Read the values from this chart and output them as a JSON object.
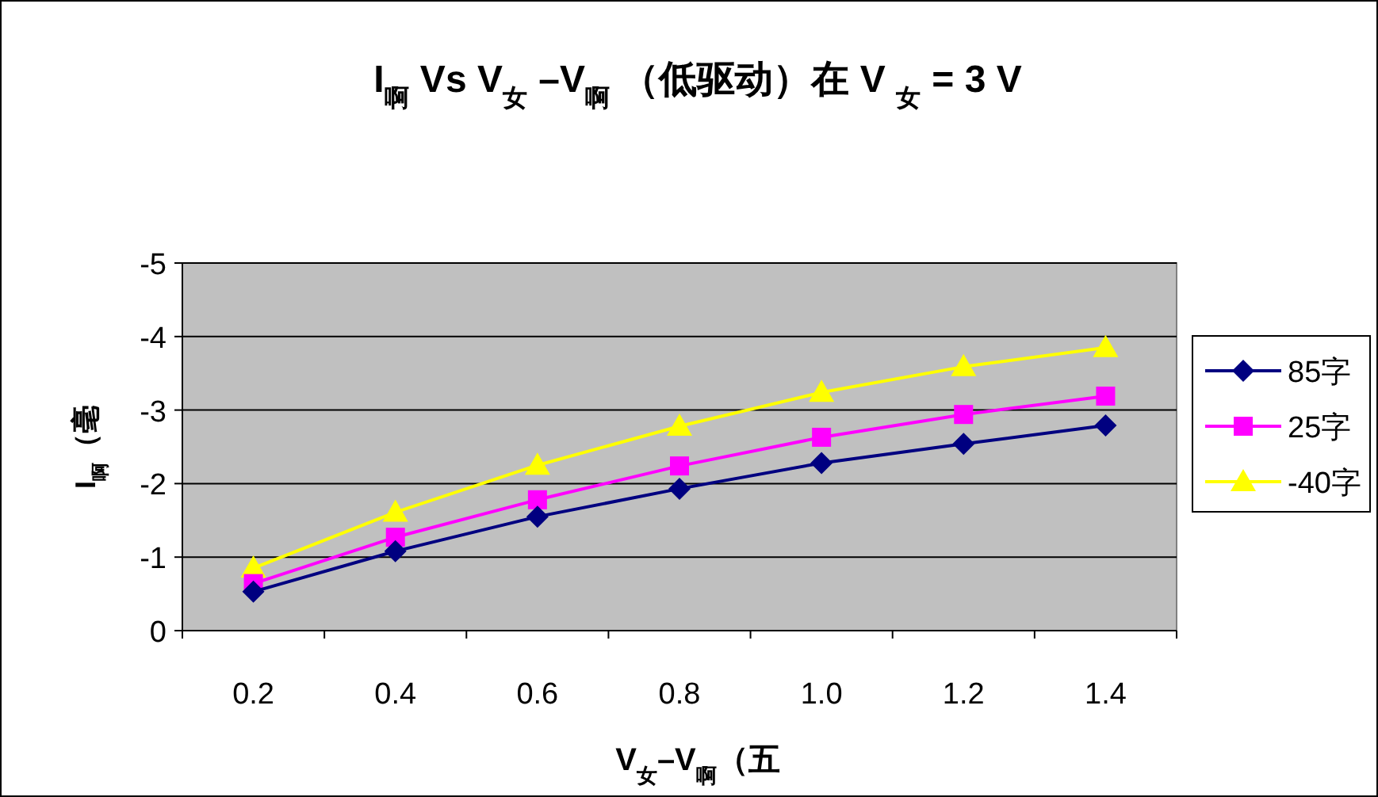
{
  "chart_data": {
    "type": "line",
    "title": "I$_{啊}$ Vs V$_{女}$ –V$_{啊}$ （低驱动）在 V $_{女}$ = 3 V",
    "xlabel": "V$_{女}$–V$_{啊}$（五",
    "ylabel": "I$_{啊}$（毫",
    "categories": [
      "0.2",
      "0.4",
      "0.6",
      "0.8",
      "1.0",
      "1.2",
      "1.4"
    ],
    "series": [
      {
        "name": "85字",
        "color": "#000080",
        "marker": "diamond",
        "values": [
          -0.53,
          -1.08,
          -1.55,
          -1.93,
          -2.28,
          -2.54,
          -2.79
        ]
      },
      {
        "name": "25字",
        "color": "#ff00ff",
        "marker": "square",
        "values": [
          -0.64,
          -1.27,
          -1.78,
          -2.24,
          -2.63,
          -2.94,
          -3.19
        ]
      },
      {
        "name": "-40字",
        "color": "#ffff00",
        "marker": "triangle",
        "values": [
          -0.85,
          -1.61,
          -2.25,
          -2.78,
          -3.24,
          -3.59,
          -3.85
        ]
      }
    ],
    "ylim": [
      0,
      -5
    ],
    "yticks": [
      0,
      -1,
      -2,
      -3,
      -4,
      -5
    ],
    "grid": "y",
    "legend": "right"
  }
}
